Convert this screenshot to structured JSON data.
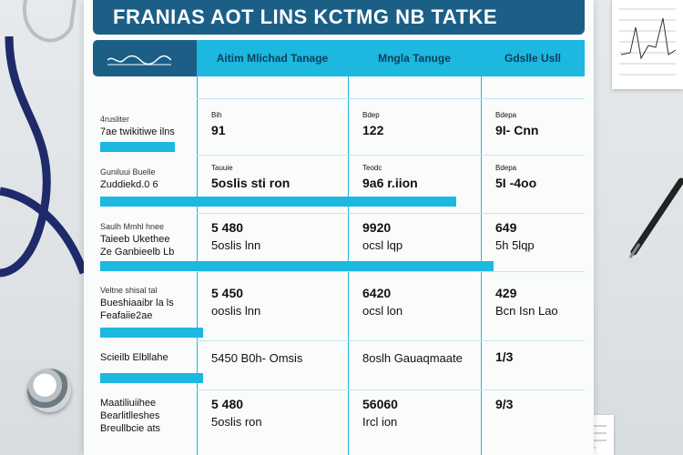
{
  "document": {
    "title": "FRANIAS AOT LINS KCTMG NB TATKE",
    "column_headers": [
      "Aitim Mlichad Tanage",
      "Mngla Tanuge",
      "Gdslle Usll"
    ]
  },
  "rows": [
    {
      "label_top": "4rusliter",
      "label_lines": [
        "7ae twikitiwe ilns"
      ],
      "cells": [
        {
          "label": "Bih",
          "value": "91",
          "sub": ""
        },
        {
          "label": "Bdep",
          "value": "122",
          "sub": ""
        },
        {
          "label": "Bdepa",
          "value": "9I- Cnn",
          "sub": ""
        }
      ],
      "bar_fraction": 0.16
    },
    {
      "label_top": "Guniluui Buelle",
      "label_lines": [
        "Zuddiekd.0 6"
      ],
      "cells": [
        {
          "label": "Tauuie",
          "value": "5oslis sti ron",
          "sub": ""
        },
        {
          "label": "Teodc",
          "value": "9a6 r.iion",
          "sub": ""
        },
        {
          "label": "Bdepa",
          "value": "5I -4oo",
          "sub": ""
        }
      ],
      "bar_fraction": 0.76
    },
    {
      "label_top": "Saulh Mmhl hnee",
      "label_lines": [
        "Taieeb Ukethee",
        "Ze Ganbieelb Lb"
      ],
      "cells": [
        {
          "label": "",
          "value": "5 480",
          "sub": "5oslis lnn"
        },
        {
          "label": "",
          "value": "9920",
          "sub": "ocsl lqp"
        },
        {
          "label": "",
          "value": "649",
          "sub": "5h 5lqp"
        }
      ],
      "bar_fraction": 0.84
    },
    {
      "label_top": "Veltne shisal tal",
      "label_lines": [
        "Bueshiaaibr la ls",
        "Feafaiie2ae"
      ],
      "cells": [
        {
          "label": "",
          "value": "5 450",
          "sub": "ooslis lnn"
        },
        {
          "label": "",
          "value": "6420",
          "sub": "ocsl lon"
        },
        {
          "label": "",
          "value": "429",
          "sub": "Bcn Isn Lao"
        }
      ],
      "bar_fraction": 0.22
    },
    {
      "label_top": "",
      "label_lines": [
        "Scieilb Elbllahe"
      ],
      "cells": [
        {
          "label": "",
          "value": "",
          "sub": "5450 B0h- Omsis"
        },
        {
          "label": "",
          "value": "",
          "sub": "8oslh Gauaqmaate"
        },
        {
          "label": "",
          "value": "1/3",
          "sub": ""
        }
      ],
      "bar_fraction": 0.22
    },
    {
      "label_top": "",
      "label_lines": [
        "Maatiliuiihee",
        "Bearlitlleshes",
        "Breullbcie ats"
      ],
      "cells": [
        {
          "label": "",
          "value": "5 480",
          "sub": "5oslis ron"
        },
        {
          "label": "",
          "value": "56060",
          "sub": "Ircl ion"
        },
        {
          "label": "",
          "value": "9/3",
          "sub": ""
        }
      ],
      "bar_fraction": 0
    }
  ],
  "colors": {
    "navy": "#1b5f86",
    "cyan": "#1cb8e0",
    "stethoscope": "#1f2a6b"
  }
}
